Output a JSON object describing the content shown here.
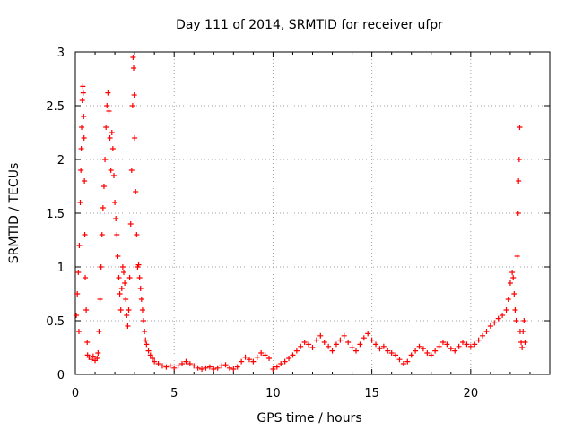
{
  "chart_data": {
    "type": "scatter",
    "title": "Day 111 of 2014, SRMTID for receiver ufpr",
    "xlabel": "GPS time / hours",
    "ylabel": "SRMTID / TECUs",
    "xlim": [
      0,
      24
    ],
    "ylim": [
      0,
      3
    ],
    "x_ticks": [
      "0",
      "5",
      "10",
      "15",
      "20"
    ],
    "x_tick_values": [
      0,
      5,
      10,
      15,
      20
    ],
    "y_ticks": [
      "0",
      "0.5",
      "1",
      "1.5",
      "2",
      "2.5",
      "3"
    ],
    "y_tick_values": [
      0,
      0.5,
      1,
      1.5,
      2,
      2.5,
      3
    ],
    "grid": true,
    "marker": "+",
    "series": [
      {
        "name": "SRMTID",
        "color": "#ff0000",
        "points": [
          [
            0.05,
            0.55
          ],
          [
            0.1,
            0.75
          ],
          [
            0.15,
            0.95
          ],
          [
            0.18,
            0.4
          ],
          [
            0.2,
            1.2
          ],
          [
            0.25,
            1.6
          ],
          [
            0.28,
            1.9
          ],
          [
            0.3,
            2.1
          ],
          [
            0.32,
            2.3
          ],
          [
            0.35,
            2.55
          ],
          [
            0.38,
            2.68
          ],
          [
            0.4,
            2.62
          ],
          [
            0.42,
            2.4
          ],
          [
            0.44,
            2.2
          ],
          [
            0.46,
            1.8
          ],
          [
            0.48,
            1.3
          ],
          [
            0.5,
            0.9
          ],
          [
            0.55,
            0.6
          ],
          [
            0.6,
            0.3
          ],
          [
            0.62,
            0.18
          ],
          [
            0.7,
            0.16
          ],
          [
            0.8,
            0.14
          ],
          [
            0.9,
            0.17
          ],
          [
            1.0,
            0.13
          ],
          [
            1.1,
            0.15
          ],
          [
            1.15,
            0.2
          ],
          [
            1.2,
            0.4
          ],
          [
            1.25,
            0.7
          ],
          [
            1.3,
            1.0
          ],
          [
            1.35,
            1.3
          ],
          [
            1.4,
            1.55
          ],
          [
            1.45,
            1.75
          ],
          [
            1.5,
            2.0
          ],
          [
            1.55,
            2.3
          ],
          [
            1.6,
            2.5
          ],
          [
            1.65,
            2.62
          ],
          [
            1.7,
            2.45
          ],
          [
            1.75,
            2.2
          ],
          [
            1.8,
            1.9
          ],
          [
            1.85,
            2.25
          ],
          [
            1.9,
            2.1
          ],
          [
            1.95,
            1.85
          ],
          [
            2.0,
            1.6
          ],
          [
            2.05,
            1.45
          ],
          [
            2.1,
            1.3
          ],
          [
            2.15,
            1.1
          ],
          [
            2.2,
            0.9
          ],
          [
            2.25,
            0.75
          ],
          [
            2.3,
            0.6
          ],
          [
            2.35,
            0.8
          ],
          [
            2.4,
            1.0
          ],
          [
            2.45,
            0.95
          ],
          [
            2.5,
            0.85
          ],
          [
            2.55,
            0.7
          ],
          [
            2.6,
            0.55
          ],
          [
            2.65,
            0.45
          ],
          [
            2.7,
            0.6
          ],
          [
            2.75,
            0.9
          ],
          [
            2.8,
            1.4
          ],
          [
            2.85,
            1.9
          ],
          [
            2.9,
            2.5
          ],
          [
            2.92,
            2.95
          ],
          [
            2.95,
            2.85
          ],
          [
            2.98,
            2.6
          ],
          [
            3.0,
            2.2
          ],
          [
            3.05,
            1.7
          ],
          [
            3.1,
            1.3
          ],
          [
            3.15,
            1.0
          ],
          [
            3.2,
            1.02
          ],
          [
            3.25,
            0.9
          ],
          [
            3.3,
            0.8
          ],
          [
            3.35,
            0.7
          ],
          [
            3.4,
            0.6
          ],
          [
            3.45,
            0.5
          ],
          [
            3.5,
            0.4
          ],
          [
            3.55,
            0.32
          ],
          [
            3.6,
            0.28
          ],
          [
            3.7,
            0.22
          ],
          [
            3.8,
            0.18
          ],
          [
            3.9,
            0.15
          ],
          [
            4.0,
            0.12
          ],
          [
            4.2,
            0.1
          ],
          [
            4.4,
            0.08
          ],
          [
            4.6,
            0.07
          ],
          [
            4.8,
            0.08
          ],
          [
            5.0,
            0.06
          ],
          [
            5.2,
            0.08
          ],
          [
            5.4,
            0.1
          ],
          [
            5.6,
            0.12
          ],
          [
            5.8,
            0.1
          ],
          [
            6.0,
            0.08
          ],
          [
            6.2,
            0.06
          ],
          [
            6.4,
            0.05
          ],
          [
            6.6,
            0.06
          ],
          [
            6.8,
            0.07
          ],
          [
            7.0,
            0.05
          ],
          [
            7.2,
            0.06
          ],
          [
            7.4,
            0.08
          ],
          [
            7.6,
            0.09
          ],
          [
            7.8,
            0.06
          ],
          [
            8.0,
            0.05
          ],
          [
            8.2,
            0.07
          ],
          [
            8.4,
            0.12
          ],
          [
            8.6,
            0.16
          ],
          [
            8.8,
            0.14
          ],
          [
            9.0,
            0.12
          ],
          [
            9.2,
            0.16
          ],
          [
            9.4,
            0.2
          ],
          [
            9.6,
            0.18
          ],
          [
            9.8,
            0.15
          ],
          [
            10.0,
            0.05
          ],
          [
            10.2,
            0.07
          ],
          [
            10.4,
            0.1
          ],
          [
            10.6,
            0.12
          ],
          [
            10.8,
            0.15
          ],
          [
            11.0,
            0.18
          ],
          [
            11.2,
            0.22
          ],
          [
            11.4,
            0.26
          ],
          [
            11.6,
            0.3
          ],
          [
            11.8,
            0.28
          ],
          [
            12.0,
            0.25
          ],
          [
            12.2,
            0.32
          ],
          [
            12.4,
            0.36
          ],
          [
            12.6,
            0.3
          ],
          [
            12.8,
            0.26
          ],
          [
            13.0,
            0.22
          ],
          [
            13.2,
            0.28
          ],
          [
            13.4,
            0.32
          ],
          [
            13.6,
            0.36
          ],
          [
            13.8,
            0.3
          ],
          [
            14.0,
            0.25
          ],
          [
            14.2,
            0.22
          ],
          [
            14.4,
            0.28
          ],
          [
            14.6,
            0.34
          ],
          [
            14.8,
            0.38
          ],
          [
            15.0,
            0.32
          ],
          [
            15.2,
            0.28
          ],
          [
            15.4,
            0.24
          ],
          [
            15.6,
            0.26
          ],
          [
            15.8,
            0.22
          ],
          [
            16.0,
            0.2
          ],
          [
            16.2,
            0.18
          ],
          [
            16.4,
            0.14
          ],
          [
            16.6,
            0.1
          ],
          [
            16.8,
            0.12
          ],
          [
            17.0,
            0.18
          ],
          [
            17.2,
            0.22
          ],
          [
            17.4,
            0.26
          ],
          [
            17.6,
            0.24
          ],
          [
            17.8,
            0.2
          ],
          [
            18.0,
            0.18
          ],
          [
            18.2,
            0.22
          ],
          [
            18.4,
            0.26
          ],
          [
            18.6,
            0.3
          ],
          [
            18.8,
            0.28
          ],
          [
            19.0,
            0.24
          ],
          [
            19.2,
            0.22
          ],
          [
            19.4,
            0.26
          ],
          [
            19.6,
            0.3
          ],
          [
            19.8,
            0.28
          ],
          [
            20.0,
            0.26
          ],
          [
            20.2,
            0.28
          ],
          [
            20.4,
            0.32
          ],
          [
            20.6,
            0.36
          ],
          [
            20.8,
            0.4
          ],
          [
            21.0,
            0.45
          ],
          [
            21.2,
            0.48
          ],
          [
            21.4,
            0.52
          ],
          [
            21.6,
            0.55
          ],
          [
            21.8,
            0.6
          ],
          [
            21.9,
            0.7
          ],
          [
            22.0,
            0.85
          ],
          [
            22.1,
            0.95
          ],
          [
            22.15,
            0.9
          ],
          [
            22.2,
            0.75
          ],
          [
            22.25,
            0.6
          ],
          [
            22.3,
            0.5
          ],
          [
            22.35,
            1.1
          ],
          [
            22.4,
            1.5
          ],
          [
            22.42,
            1.8
          ],
          [
            22.45,
            2.0
          ],
          [
            22.48,
            2.3
          ],
          [
            22.5,
            0.4
          ],
          [
            22.55,
            0.3
          ],
          [
            22.6,
            0.25
          ],
          [
            22.65,
            0.4
          ],
          [
            22.7,
            0.5
          ],
          [
            22.75,
            0.3
          ]
        ]
      }
    ]
  }
}
